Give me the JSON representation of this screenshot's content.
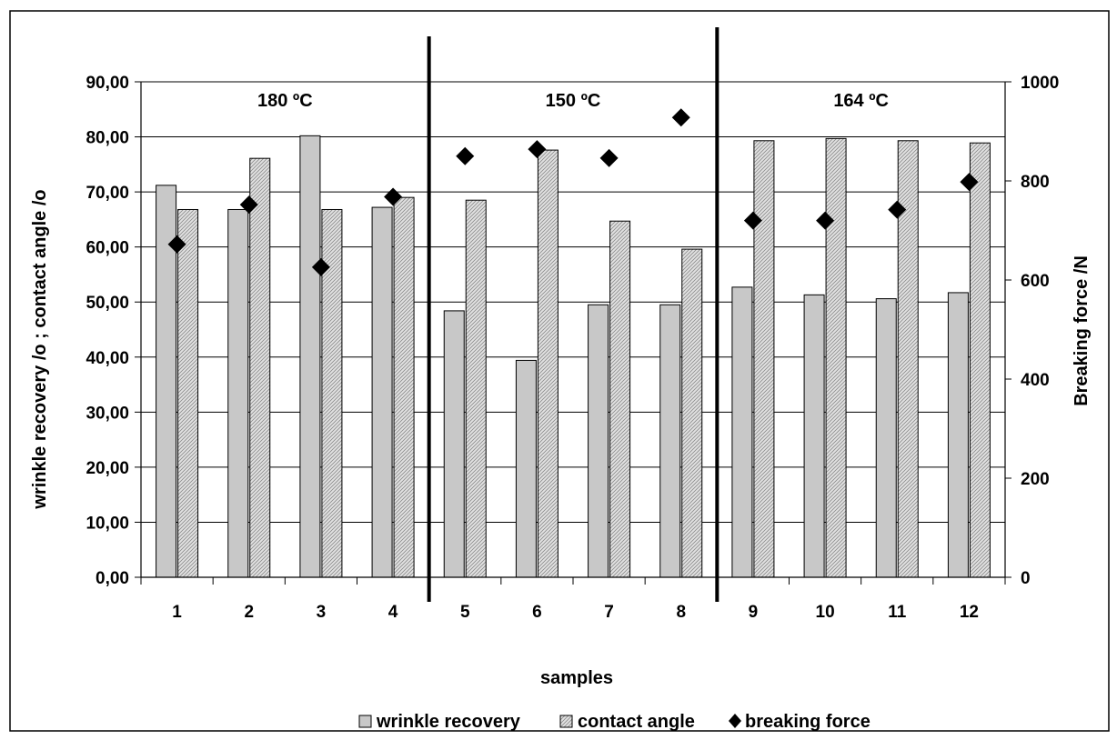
{
  "chart_data": {
    "type": "bar",
    "title": "",
    "xlabel": "samples",
    "ylabel": "wrinkle recovery /o ; contact angle /o",
    "y2label": "Breaking force /N",
    "categories": [
      "1",
      "2",
      "3",
      "4",
      "5",
      "6",
      "7",
      "8",
      "9",
      "10",
      "11",
      "12"
    ],
    "ylim": [
      0,
      90
    ],
    "yticks": [
      0,
      10,
      20,
      30,
      40,
      50,
      60,
      70,
      80,
      90
    ],
    "ytick_labels": [
      "0,00",
      "10,00",
      "20,00",
      "30,00",
      "40,00",
      "50,00",
      "60,00",
      "70,00",
      "80,00",
      "90,00"
    ],
    "y2lim": [
      0,
      1000
    ],
    "y2ticks": [
      0,
      200,
      400,
      600,
      800,
      1000
    ],
    "y2tick_labels": [
      "0",
      "200",
      "400",
      "600",
      "800",
      "1000"
    ],
    "grid": true,
    "legend_position": "bottom",
    "groups": [
      {
        "label": "180 ºC",
        "from": 1,
        "to": 4
      },
      {
        "label": "150 ºC",
        "from": 5,
        "to": 8
      },
      {
        "label": "164 ºC",
        "from": 9,
        "to": 12
      }
    ],
    "series": [
      {
        "name": "wrinkle recovery",
        "type": "bar",
        "axis": "left",
        "color": "#c8c8c8",
        "values": [
          71.2,
          66.8,
          80.2,
          67.2,
          48.4,
          39.4,
          49.5,
          49.5,
          52.7,
          51.3,
          50.6,
          51.7
        ]
      },
      {
        "name": "contact angle",
        "type": "bar",
        "axis": "left",
        "color": "#d9d9d9",
        "pattern": "hatched",
        "values": [
          66.8,
          76.1,
          66.8,
          69.0,
          68.5,
          77.6,
          64.7,
          59.6,
          79.3,
          79.7,
          79.3,
          78.9
        ]
      },
      {
        "name": "breaking force",
        "type": "scatter",
        "marker": "diamond",
        "axis": "right",
        "color": "#000000",
        "values": [
          672,
          752,
          626,
          768,
          850,
          864,
          846,
          928,
          720,
          720,
          742,
          798
        ]
      }
    ]
  }
}
